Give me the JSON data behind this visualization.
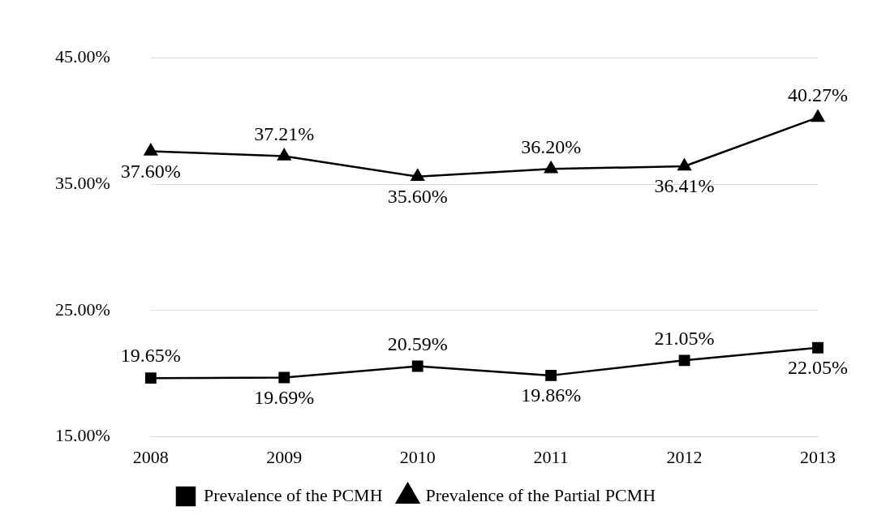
{
  "chart_data": {
    "type": "line",
    "categories": [
      "2008",
      "2009",
      "2010",
      "2011",
      "2012",
      "2013"
    ],
    "series": [
      {
        "name": "Prevalence of the PCMH",
        "color": "#000000",
        "marker": "square",
        "values": [
          19.65,
          19.69,
          20.59,
          19.86,
          21.05,
          22.05
        ],
        "value_labels": [
          "19.65%",
          "19.69%",
          "20.59%",
          "19.86%",
          "21.05%",
          "22.05%"
        ]
      },
      {
        "name": "Prevalence of the Partial PCMH",
        "color": "#000000",
        "marker": "triangle",
        "values": [
          37.6,
          37.21,
          35.6,
          36.2,
          36.41,
          40.27
        ],
        "value_labels": [
          "37.60%",
          "37.21%",
          "35.60%",
          "36.20%",
          "36.41%",
          "40.27%"
        ]
      }
    ],
    "ylim": [
      15,
      45
    ],
    "yticks": [
      {
        "value": 15,
        "label": "15.00%"
      },
      {
        "value": 25,
        "label": "25.00%"
      },
      {
        "value": 35,
        "label": "35.00%"
      },
      {
        "value": 45,
        "label": "45.00%"
      }
    ],
    "grid": "y",
    "legend": "bottom",
    "line_style": "solid"
  }
}
